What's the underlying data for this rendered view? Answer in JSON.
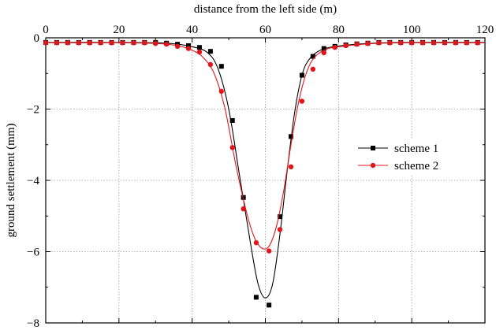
{
  "chart_data": {
    "type": "line",
    "xlabel": "distance from the left side (m)",
    "ylabel": "ground settlement (mm)",
    "xlim": [
      0,
      120
    ],
    "ylim": [
      -8,
      0
    ],
    "x_axis_position": "top",
    "x_ticks": [
      0,
      20,
      40,
      60,
      80,
      100,
      120
    ],
    "x_tick_labels": [
      "0",
      "20",
      "40",
      "60",
      "80",
      "100",
      "120"
    ],
    "y_ticks": [
      0,
      -2,
      -4,
      -6,
      -8
    ],
    "y_tick_labels": [
      "0",
      "−2",
      "−4",
      "−6",
      "−8"
    ],
    "grid": true,
    "legend_position": "right",
    "series": [
      {
        "name": "scheme 1",
        "color": "#000000",
        "marker": "square",
        "points": [
          [
            0,
            -0.13
          ],
          [
            3,
            -0.13
          ],
          [
            6,
            -0.13
          ],
          [
            9,
            -0.13
          ],
          [
            12,
            -0.13
          ],
          [
            15,
            -0.13
          ],
          [
            18,
            -0.13
          ],
          [
            21,
            -0.13
          ],
          [
            24,
            -0.13
          ],
          [
            27,
            -0.13
          ],
          [
            30,
            -0.13
          ],
          [
            33,
            -0.15
          ],
          [
            36,
            -0.18
          ],
          [
            39,
            -0.22
          ],
          [
            42,
            -0.27
          ],
          [
            45,
            -0.38
          ],
          [
            48,
            -0.8
          ],
          [
            51,
            -2.32
          ],
          [
            54,
            -4.48
          ],
          [
            57.5,
            -7.28
          ],
          [
            61,
            -7.5
          ],
          [
            64,
            -5.02
          ],
          [
            67,
            -2.77
          ],
          [
            70,
            -1.05
          ],
          [
            73,
            -0.52
          ],
          [
            76,
            -0.3
          ],
          [
            79,
            -0.24
          ],
          [
            82,
            -0.2
          ],
          [
            85,
            -0.17
          ],
          [
            88,
            -0.15
          ],
          [
            91,
            -0.13
          ],
          [
            94,
            -0.13
          ],
          [
            97,
            -0.13
          ],
          [
            100,
            -0.13
          ],
          [
            103,
            -0.13
          ],
          [
            106,
            -0.13
          ],
          [
            109,
            -0.13
          ],
          [
            112,
            -0.13
          ],
          [
            115,
            -0.13
          ],
          [
            118,
            -0.13
          ]
        ],
        "curve": [
          [
            0,
            -0.13
          ],
          [
            20,
            -0.13
          ],
          [
            30,
            -0.14
          ],
          [
            36,
            -0.18
          ],
          [
            40,
            -0.25
          ],
          [
            44,
            -0.4
          ],
          [
            47,
            -0.85
          ],
          [
            50,
            -2.0
          ],
          [
            53,
            -3.9
          ],
          [
            56,
            -5.8
          ],
          [
            58,
            -6.9
          ],
          [
            60,
            -7.3
          ],
          [
            62,
            -6.9
          ],
          [
            64,
            -5.5
          ],
          [
            66,
            -3.7
          ],
          [
            68,
            -2.1
          ],
          [
            70,
            -1.05
          ],
          [
            72,
            -0.6
          ],
          [
            75,
            -0.35
          ],
          [
            80,
            -0.23
          ],
          [
            90,
            -0.15
          ],
          [
            100,
            -0.13
          ],
          [
            120,
            -0.13
          ]
        ]
      },
      {
        "name": "scheme 2",
        "color": "#e0161d",
        "marker": "circle",
        "points": [
          [
            0,
            -0.14
          ],
          [
            3,
            -0.14
          ],
          [
            6,
            -0.14
          ],
          [
            9,
            -0.14
          ],
          [
            12,
            -0.14
          ],
          [
            15,
            -0.14
          ],
          [
            18,
            -0.14
          ],
          [
            21,
            -0.14
          ],
          [
            24,
            -0.14
          ],
          [
            27,
            -0.14
          ],
          [
            30,
            -0.16
          ],
          [
            33,
            -0.18
          ],
          [
            36,
            -0.24
          ],
          [
            39,
            -0.3
          ],
          [
            42,
            -0.4
          ],
          [
            45,
            -0.75
          ],
          [
            48,
            -1.5
          ],
          [
            51,
            -3.08
          ],
          [
            54,
            -4.8
          ],
          [
            57.5,
            -5.75
          ],
          [
            61,
            -5.98
          ],
          [
            64,
            -5.38
          ],
          [
            67,
            -3.62
          ],
          [
            70,
            -1.78
          ],
          [
            73,
            -0.88
          ],
          [
            76,
            -0.42
          ],
          [
            79,
            -0.27
          ],
          [
            82,
            -0.22
          ],
          [
            85,
            -0.18
          ],
          [
            88,
            -0.16
          ],
          [
            91,
            -0.14
          ],
          [
            94,
            -0.14
          ],
          [
            97,
            -0.14
          ],
          [
            100,
            -0.14
          ],
          [
            103,
            -0.14
          ],
          [
            106,
            -0.14
          ],
          [
            109,
            -0.14
          ],
          [
            112,
            -0.14
          ],
          [
            115,
            -0.14
          ],
          [
            118,
            -0.14
          ]
        ],
        "curve": [
          [
            0,
            -0.14
          ],
          [
            20,
            -0.14
          ],
          [
            30,
            -0.16
          ],
          [
            36,
            -0.22
          ],
          [
            40,
            -0.35
          ],
          [
            43,
            -0.55
          ],
          [
            46,
            -1.0
          ],
          [
            49,
            -2.0
          ],
          [
            52,
            -3.6
          ],
          [
            55,
            -4.95
          ],
          [
            57,
            -5.6
          ],
          [
            59,
            -5.9
          ],
          [
            61,
            -5.85
          ],
          [
            63,
            -5.3
          ],
          [
            65,
            -4.3
          ],
          [
            67,
            -3.0
          ],
          [
            69,
            -1.85
          ],
          [
            71,
            -1.05
          ],
          [
            73,
            -0.6
          ],
          [
            76,
            -0.35
          ],
          [
            80,
            -0.25
          ],
          [
            90,
            -0.16
          ],
          [
            100,
            -0.14
          ],
          [
            120,
            -0.14
          ]
        ]
      }
    ]
  }
}
